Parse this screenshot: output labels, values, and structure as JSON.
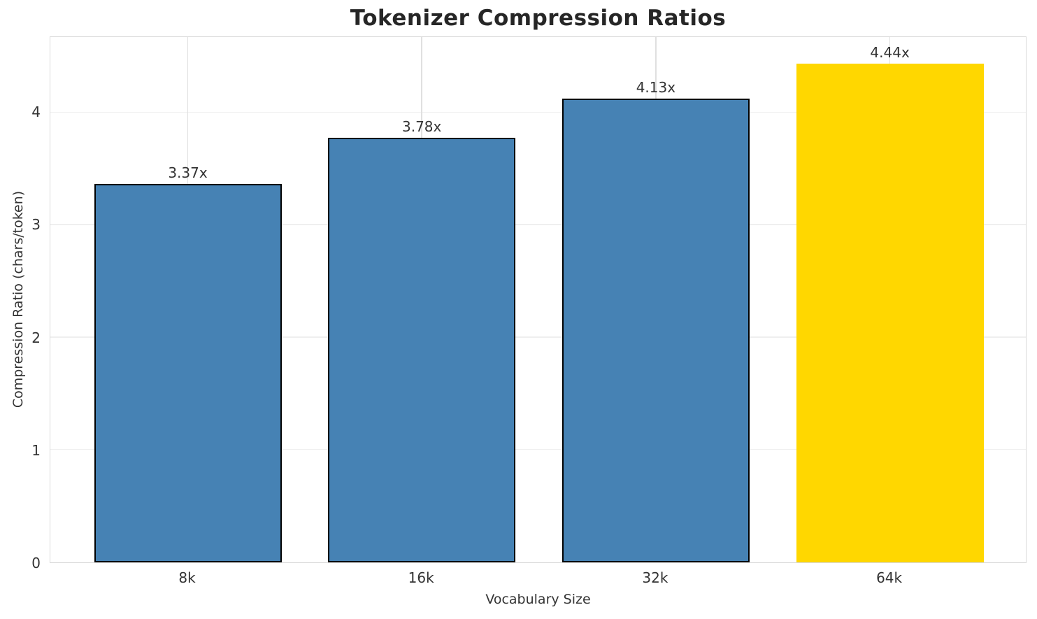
{
  "chart_data": {
    "type": "bar",
    "title": "Tokenizer Compression Ratios",
    "xlabel": "Vocabulary Size",
    "ylabel": "Compression Ratio (chars/token)",
    "categories": [
      "8k",
      "16k",
      "32k",
      "64k"
    ],
    "values": [
      3.37,
      3.78,
      4.13,
      4.44
    ],
    "bar_labels": [
      "3.37x",
      "3.78x",
      "4.13x",
      "4.44x"
    ],
    "yticks": [
      0,
      1,
      2,
      3,
      4
    ],
    "ylim": [
      0,
      4.67
    ],
    "grid": true,
    "legend": "none",
    "colors": {
      "base_bar": "#4682B4",
      "highlight_bar": "#FFD700",
      "bar_edge": "#000000",
      "grid_h": "#efefef",
      "grid_v": "#e0e0e0",
      "spine": "#d9d9d9",
      "text": "#333333",
      "title_text": "#262626"
    },
    "bar_colors": [
      "#4682B4",
      "#4682B4",
      "#4682B4",
      "#FFD700"
    ],
    "bar_edge_colors": [
      "#000000",
      "#000000",
      "#000000",
      "none"
    ]
  }
}
